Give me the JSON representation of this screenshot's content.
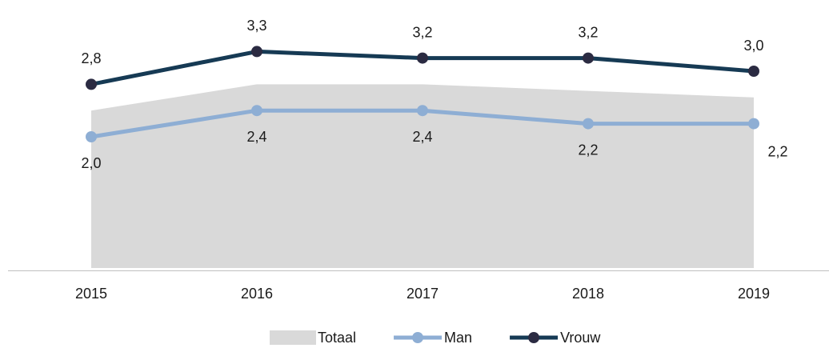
{
  "chart_data": {
    "type": "line",
    "categories": [
      "2015",
      "2016",
      "2017",
      "2018",
      "2019"
    ],
    "series": [
      {
        "name": "Totaal",
        "kind": "area",
        "color": "#d9d9d9",
        "values": [
          2.4,
          2.8,
          2.8,
          2.7,
          2.6
        ]
      },
      {
        "name": "Man",
        "kind": "line",
        "color": "#8eaed4",
        "values": [
          2.0,
          2.4,
          2.4,
          2.2,
          2.2
        ],
        "value_labels": [
          "2,0",
          "2,4",
          "2,4",
          "2,2",
          "2,2"
        ],
        "label_position": "below"
      },
      {
        "name": "Vrouw",
        "kind": "line",
        "color": "#163a54",
        "marker_color": "#2b2b42",
        "values": [
          2.8,
          3.3,
          3.2,
          3.2,
          3.0
        ],
        "value_labels": [
          "2,8",
          "3,3",
          "3,2",
          "3,2",
          "3,0"
        ],
        "label_position": "above"
      }
    ],
    "ylim": [
      0,
      4
    ],
    "legend": "bottom"
  }
}
